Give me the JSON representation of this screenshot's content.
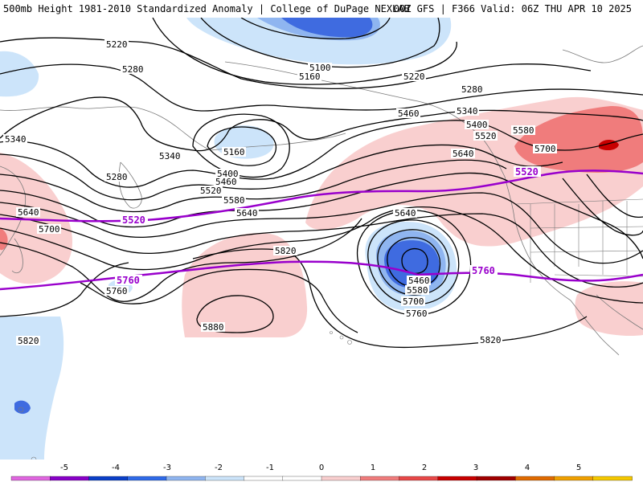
{
  "header": {
    "left_title": "500mb Height 1981-2010 Standardized Anomaly | College of DuPage NEXLAB",
    "right_title": "00Z GFS | F366 Valid: 06Z THU APR 10 2025"
  },
  "colors": {
    "anom_neg_1": "#cce4fa",
    "anom_neg_2": "#8fb5f0",
    "anom_neg_3": "#3f6be0",
    "anom_pos_1": "#f9cfcf",
    "anom_pos_2": "#f07c7c",
    "anom_pos_3": "#c80000",
    "highlight_contour": "#9900cc",
    "height_contour": "#000000",
    "coastline": "#7a7a7a"
  },
  "contour_labels": [
    {
      "id": "h5220-a",
      "text": "5220"
    },
    {
      "id": "h5220-b",
      "text": "5220"
    },
    {
      "id": "h5100",
      "text": "5100"
    },
    {
      "id": "h5160-a",
      "text": "5160"
    },
    {
      "id": "h5280-a",
      "text": "5280"
    },
    {
      "id": "h5280-b",
      "text": "5280"
    },
    {
      "id": "h5280-c",
      "text": "5280"
    },
    {
      "id": "h5340-a",
      "text": "5340"
    },
    {
      "id": "h5340-b",
      "text": "5340"
    },
    {
      "id": "h5340-c",
      "text": "5340"
    },
    {
      "id": "h5160-b",
      "text": "5160"
    },
    {
      "id": "h5400-a",
      "text": "5400"
    },
    {
      "id": "h5400-b",
      "text": "5400"
    },
    {
      "id": "h5460-a",
      "text": "5460"
    },
    {
      "id": "h5460-b",
      "text": "5460"
    },
    {
      "id": "h5520-a",
      "text": "5520"
    },
    {
      "id": "h5520-b",
      "text": "5520"
    },
    {
      "id": "h5580-a",
      "text": "5580"
    },
    {
      "id": "h5580-b",
      "text": "5580"
    },
    {
      "id": "h5640-a",
      "text": "5640"
    },
    {
      "id": "h5640-b",
      "text": "5640"
    },
    {
      "id": "h5640-c",
      "text": "5640"
    },
    {
      "id": "h5640-d",
      "text": "5640"
    },
    {
      "id": "h5700-a",
      "text": "5700"
    },
    {
      "id": "h5700-b",
      "text": "5700"
    },
    {
      "id": "h5700-c",
      "text": "5700"
    },
    {
      "id": "h5760-a",
      "text": "5760"
    },
    {
      "id": "h5760-b",
      "text": "5760"
    },
    {
      "id": "h5820-a",
      "text": "5820"
    },
    {
      "id": "h5820-b",
      "text": "5820"
    },
    {
      "id": "h5820-c",
      "text": "5820"
    },
    {
      "id": "h5880",
      "text": "5880"
    },
    {
      "id": "h5460-c",
      "text": "5460"
    },
    {
      "id": "h5580-c",
      "text": "5580"
    }
  ],
  "highlight_labels": [
    {
      "id": "m5520-a",
      "text": "5520"
    },
    {
      "id": "m5520-b",
      "text": "5520"
    },
    {
      "id": "m5760-a",
      "text": "5760"
    },
    {
      "id": "m5760-b",
      "text": "5760"
    }
  ],
  "colorbar": {
    "ticks": [
      "-5",
      "-4",
      "-3",
      "-2",
      "-1",
      "0",
      "1",
      "2",
      "3",
      "4",
      "5"
    ],
    "segments": [
      "#e066e0",
      "#8800c8",
      "#0a3fc8",
      "#2f6ae8",
      "#8fb5f0",
      "#cce4fa",
      "#ffffff",
      "#ffffff",
      "#f9cfcf",
      "#f07c7c",
      "#e84848",
      "#c80000",
      "#a00000",
      "#e06a00",
      "#f0a000",
      "#f5c800"
    ]
  }
}
